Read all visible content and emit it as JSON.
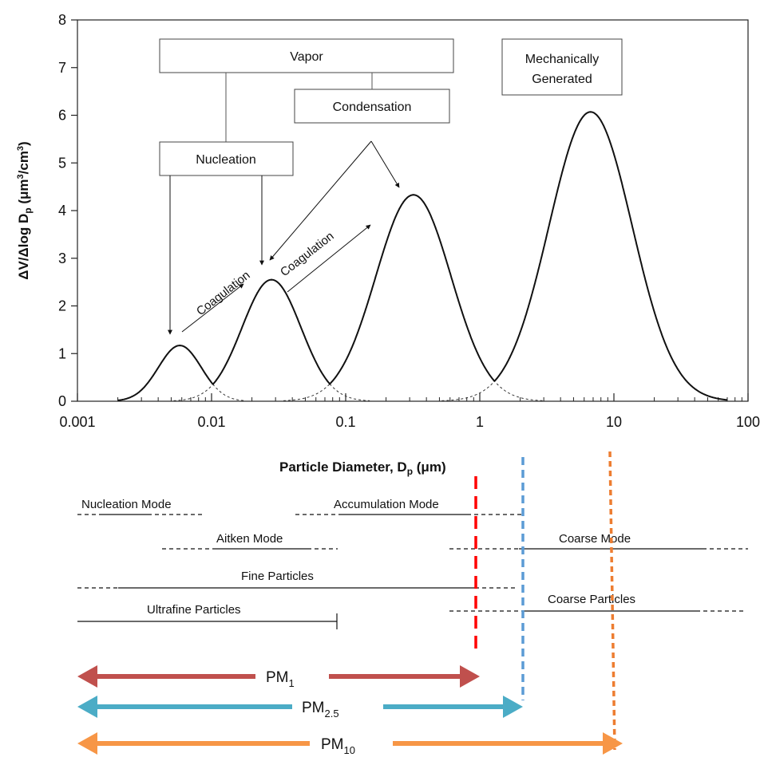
{
  "chart_data": {
    "type": "line",
    "x_scale": "log",
    "xlim": [
      0.001,
      100
    ],
    "ylim": [
      0,
      8
    ],
    "ylabel": "ΔV/Δlog D_p (μm³/cm³)",
    "xlabel": "Particle Diameter, D_p (μm)",
    "x_ticks": [
      "0.001",
      "0.01",
      "0.1",
      "1",
      "10",
      "100"
    ],
    "y_ticks": [
      "0",
      "1",
      "2",
      "3",
      "4",
      "5",
      "6",
      "7",
      "8"
    ],
    "series": [
      {
        "mode": "Nucleation",
        "peak_diameter_um": 0.0058,
        "peak_value": 1.17
      },
      {
        "mode": "Aitken",
        "peak_diameter_um": 0.028,
        "peak_value": 2.55
      },
      {
        "mode": "Accumulation",
        "peak_diameter_um": 0.32,
        "peak_value": 4.33
      },
      {
        "mode": "Coarse",
        "peak_diameter_um": 6.7,
        "peak_value": 6.07
      }
    ],
    "annotations": {
      "vapor": "Vapor",
      "nucleation": "Nucleation",
      "condensation": "Condensation",
      "mech_line1": "Mechanically",
      "mech_line2": "Generated",
      "coag1": "Coagulation",
      "coag2": "Coagulation"
    }
  },
  "ranges": {
    "nucleation_mode": "Nucleation Mode",
    "accumulation_mode": "Accumulation Mode",
    "aitken_mode": "Aitken Mode",
    "coarse_mode": "Coarse Mode",
    "fine_particles": "Fine Particles",
    "coarse_particles": "Coarse Particles",
    "ultrafine_particles": "Ultrafine Particles"
  },
  "pm": {
    "pm1_base": "PM",
    "pm1_sub": "1",
    "pm25_base": "PM",
    "pm25_sub": "2.5",
    "pm10_base": "PM",
    "pm10_sub": "10"
  },
  "colors": {
    "pm1": "#c0504d",
    "pm25": "#4bacc6",
    "pm10": "#f79646",
    "pm1_cut": "#ff0000",
    "pm25_cut": "#5b9bd5",
    "pm10_cut": "#ed7d31"
  }
}
